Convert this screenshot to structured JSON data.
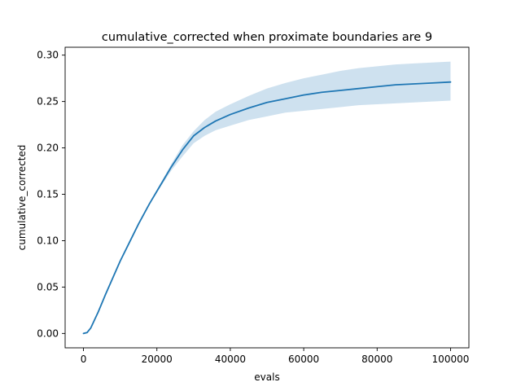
{
  "chart_data": {
    "type": "line",
    "title": "cumulative_corrected when proximate boundaries are 9",
    "xlabel": "evals",
    "ylabel": "cumulative_corrected",
    "xlim": [
      -5000,
      105000
    ],
    "ylim": [
      -0.0155,
      0.3085
    ],
    "xticks": [
      0,
      20000,
      40000,
      60000,
      80000,
      100000
    ],
    "xtick_labels": [
      "0",
      "20000",
      "40000",
      "60000",
      "80000",
      "100000"
    ],
    "yticks": [
      0.0,
      0.05,
      0.1,
      0.15,
      0.2,
      0.25,
      0.3
    ],
    "ytick_labels": [
      "0.00",
      "0.05",
      "0.10",
      "0.15",
      "0.20",
      "0.25",
      "0.30"
    ],
    "grid": false,
    "line_color": "#1f77b4",
    "band_color": "#1f77b4",
    "series": [
      {
        "x": [
          0,
          1000,
          2000,
          4000,
          6000,
          8000,
          10000,
          12000,
          15000,
          18000,
          21000,
          24000,
          27000,
          30000,
          33000,
          36000,
          40000,
          45000,
          50000,
          55000,
          60000,
          65000,
          70000,
          75000,
          80000,
          85000,
          90000,
          95000,
          100000
        ],
        "y": [
          0.0,
          0.001,
          0.006,
          0.023,
          0.042,
          0.06,
          0.078,
          0.094,
          0.118,
          0.14,
          0.16,
          0.18,
          0.198,
          0.213,
          0.222,
          0.229,
          0.236,
          0.243,
          0.249,
          0.253,
          0.257,
          0.26,
          0.262,
          0.264,
          0.266,
          0.268,
          0.269,
          0.27,
          0.271
        ],
        "y_lower": [
          0.0,
          0.001,
          0.006,
          0.023,
          0.042,
          0.06,
          0.078,
          0.094,
          0.117,
          0.139,
          0.158,
          0.176,
          0.191,
          0.205,
          0.213,
          0.219,
          0.224,
          0.23,
          0.234,
          0.238,
          0.24,
          0.242,
          0.244,
          0.246,
          0.247,
          0.248,
          0.249,
          0.25,
          0.251
        ],
        "y_upper": [
          0.001,
          0.002,
          0.007,
          0.024,
          0.043,
          0.061,
          0.079,
          0.095,
          0.119,
          0.141,
          0.162,
          0.183,
          0.203,
          0.218,
          0.23,
          0.239,
          0.247,
          0.256,
          0.264,
          0.27,
          0.275,
          0.279,
          0.283,
          0.286,
          0.288,
          0.29,
          0.291,
          0.292,
          0.293
        ]
      }
    ]
  }
}
